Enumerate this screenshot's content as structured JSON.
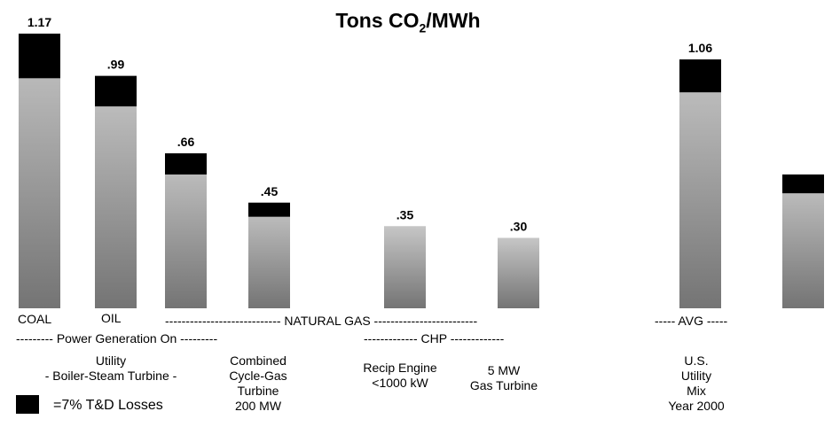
{
  "chart_data": {
    "type": "bar",
    "title_main": "Tons CO",
    "title_sub": "2",
    "title_end": "/MWh",
    "value_labels": [
      "1.17",
      ".99",
      ".66",
      ".45",
      ".35",
      ".30",
      "1.06",
      ""
    ],
    "values": [
      1.17,
      0.99,
      0.66,
      0.45,
      0.35,
      0.3,
      1.06,
      0.57
    ],
    "td_losses": [
      0.19,
      0.13,
      0.09,
      0.06,
      0,
      0,
      0.14,
      0.08
    ],
    "ylim": [
      0,
      1.2
    ],
    "grid": false,
    "legend_text": "=7% T&D Losses",
    "category_labels": {
      "coal": "COAL",
      "oil": "OIL",
      "natural_gas": "---------------------------- NATURAL GAS -------------------------",
      "avg": "----- AVG -----",
      "power_gen": "--------- Power Generation On ---------",
      "chp": "------------- CHP -------------",
      "utility_1": "Utility",
      "utility_2": "-   Boiler-Steam Turbine  -",
      "combined_1": "Combined",
      "combined_2": "Cycle-Gas",
      "combined_3": "Turbine",
      "combined_4": "200 MW",
      "recip_1": "Recip   Engine",
      "recip_2": "<1000 kW",
      "gt_1": "5 MW",
      "gt_2": "Gas Turbine",
      "us_1": "U.S.",
      "us_2": "Utility",
      "us_3": "Mix",
      "us_4": "Year 2000"
    }
  }
}
